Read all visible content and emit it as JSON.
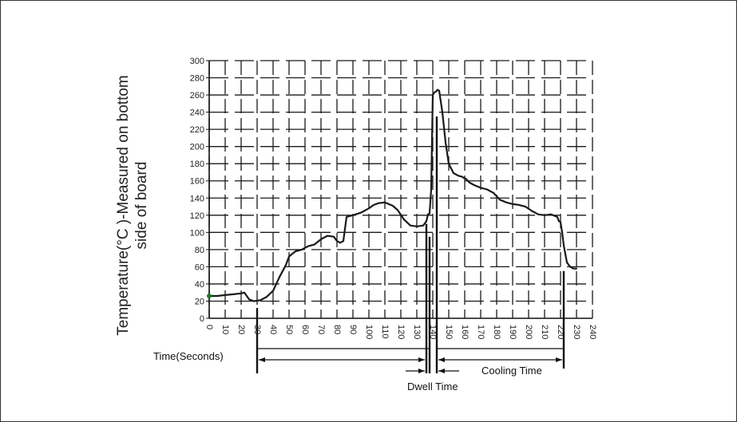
{
  "chart_data": {
    "type": "line",
    "title": "",
    "ylabel_lines": [
      "Temperature(°C )-Measured on bottom",
      "side of board"
    ],
    "xlabel": "Time(Seconds)",
    "xlim": [
      0,
      240
    ],
    "ylim": [
      0,
      300
    ],
    "x_ticks": [
      0,
      10,
      20,
      30,
      40,
      50,
      60,
      70,
      80,
      90,
      100,
      110,
      120,
      130,
      140,
      150,
      160,
      170,
      180,
      190,
      200,
      210,
      220,
      230,
      240
    ],
    "y_ticks": [
      0,
      20,
      40,
      60,
      80,
      100,
      120,
      140,
      160,
      180,
      200,
      220,
      240,
      260,
      280,
      300
    ],
    "grid": true,
    "series": [
      {
        "x": [
          0,
          5,
          10,
          15,
          20,
          22,
          25,
          28,
          32,
          36,
          40,
          44,
          48,
          50,
          54,
          58,
          62,
          66,
          70,
          74,
          78,
          80,
          82,
          84,
          86,
          90,
          95,
          100,
          103,
          106,
          110,
          115,
          118,
          122,
          126,
          130,
          134,
          136,
          137,
          138,
          139,
          140,
          141,
          142,
          143,
          144,
          146,
          148,
          150,
          153,
          156,
          158,
          161,
          163,
          166,
          170,
          174,
          178,
          182,
          186,
          190,
          194,
          198,
          202,
          206,
          210,
          214,
          218,
          219,
          220,
          221,
          222,
          224,
          226,
          228,
          230
        ],
        "y": [
          26,
          26,
          27,
          28,
          29,
          30,
          22,
          20,
          21,
          25,
          32,
          48,
          62,
          72,
          78,
          80,
          84,
          86,
          92,
          96,
          95,
          90,
          88,
          90,
          118,
          120,
          123,
          128,
          132,
          134,
          135,
          131,
          126,
          115,
          108,
          107,
          108,
          113,
          121,
          122,
          150,
          260,
          263,
          264,
          266,
          265,
          240,
          205,
          180,
          169,
          166,
          165,
          162,
          158,
          155,
          152,
          150,
          146,
          138,
          135,
          133,
          132,
          130,
          125,
          121,
          120,
          121,
          118,
          113,
          112,
          100,
          85,
          65,
          60,
          58,
          58
        ]
      }
    ],
    "annotations": {
      "dwell_time": "Dwell Time",
      "cooling_time": "Cooling Time"
    }
  }
}
